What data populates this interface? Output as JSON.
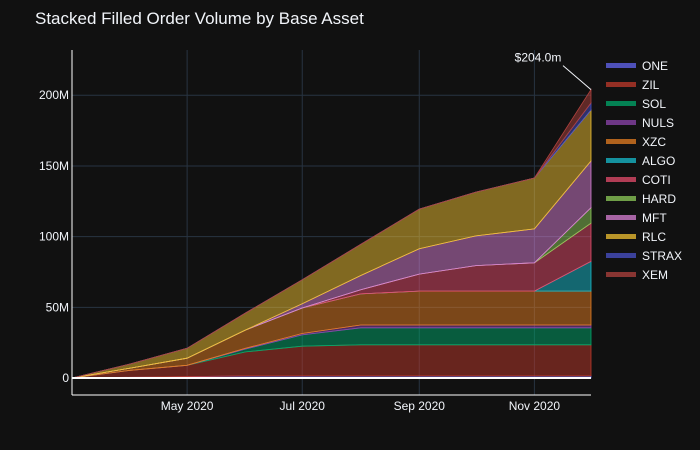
{
  "title": "Stacked Filled Order Volume by Base Asset",
  "colors": {
    "background": "#111111",
    "grid": "#283442",
    "text": "#f2f5fa",
    "axis_line": "#ffffff"
  },
  "chart_data": {
    "type": "area",
    "stacked": true,
    "title": "Stacked Filled Order Volume by Base Asset",
    "xlabel": "",
    "ylabel": "",
    "x_range": [
      "2020-03-01",
      "2020-12-01"
    ],
    "ylim": [
      -12,
      232
    ],
    "yticks": [
      0,
      50,
      100,
      150,
      200
    ],
    "ytick_labels": [
      "0",
      "50M",
      "100M",
      "150M",
      "200M"
    ],
    "xticks": [
      "2020-05-01",
      "2020-07-01",
      "2020-09-01",
      "2020-11-01"
    ],
    "xtick_labels": [
      "May 2020",
      "Jul 2020",
      "Sep 2020",
      "Nov 2020"
    ],
    "units": "USD millions (stacked cumulative)",
    "x": [
      "2020-03-01",
      "2020-04-01",
      "2020-05-01",
      "2020-06-01",
      "2020-07-01",
      "2020-08-01",
      "2020-09-01",
      "2020-10-01",
      "2020-11-01",
      "2020-12-01"
    ],
    "series": [
      {
        "name": "ONE",
        "color": "#6366f1",
        "values": [
          0,
          0.5,
          1,
          1.5,
          1.5,
          1.5,
          1.5,
          1.5,
          1.5,
          1.5
        ]
      },
      {
        "name": "ZIL",
        "color": "#c0392b",
        "values": [
          0,
          5,
          8,
          17,
          21,
          22,
          22,
          22,
          22,
          22
        ]
      },
      {
        "name": "SOL",
        "color": "#00a86b",
        "values": [
          0,
          0,
          0,
          2,
          8,
          12,
          12,
          12,
          12,
          12
        ]
      },
      {
        "name": "NULS",
        "color": "#8e44ad",
        "values": [
          0,
          0,
          0,
          0.5,
          1,
          2,
          2,
          2,
          2,
          2
        ]
      },
      {
        "name": "XZC",
        "color": "#e67e22",
        "values": [
          0,
          1.5,
          5,
          13,
          18,
          22,
          24,
          24,
          24,
          24
        ]
      },
      {
        "name": "ALGO",
        "color": "#17becf",
        "values": [
          0,
          0,
          0,
          0,
          0,
          0,
          0,
          0,
          0,
          21
        ]
      },
      {
        "name": "COTI",
        "color": "#e74c6c",
        "values": [
          0,
          0,
          0,
          0,
          0,
          3,
          12,
          18,
          20,
          27
        ]
      },
      {
        "name": "HARD",
        "color": "#8fce5a",
        "values": [
          0,
          0,
          0,
          0,
          0,
          0,
          0,
          0,
          0,
          11
        ]
      },
      {
        "name": "MFT",
        "color": "#d980d6",
        "values": [
          0,
          0,
          0,
          0,
          3,
          10,
          18,
          21,
          24,
          33
        ]
      },
      {
        "name": "RLC",
        "color": "#f1c232",
        "values": [
          0,
          3,
          7,
          12,
          17,
          22,
          28,
          31,
          36,
          36
        ]
      },
      {
        "name": "STRAX",
        "color": "#4a52c9",
        "values": [
          0,
          0,
          0,
          0,
          0,
          0,
          0,
          0,
          0,
          5
        ]
      },
      {
        "name": "XEM",
        "color": "#b0413e",
        "values": [
          0,
          0,
          0,
          0,
          0,
          0,
          0,
          0,
          0,
          9.5
        ]
      }
    ],
    "annotation": {
      "text": "$204.0m",
      "x": "2020-12-01",
      "y": 204.0
    },
    "legend_position": "right"
  }
}
